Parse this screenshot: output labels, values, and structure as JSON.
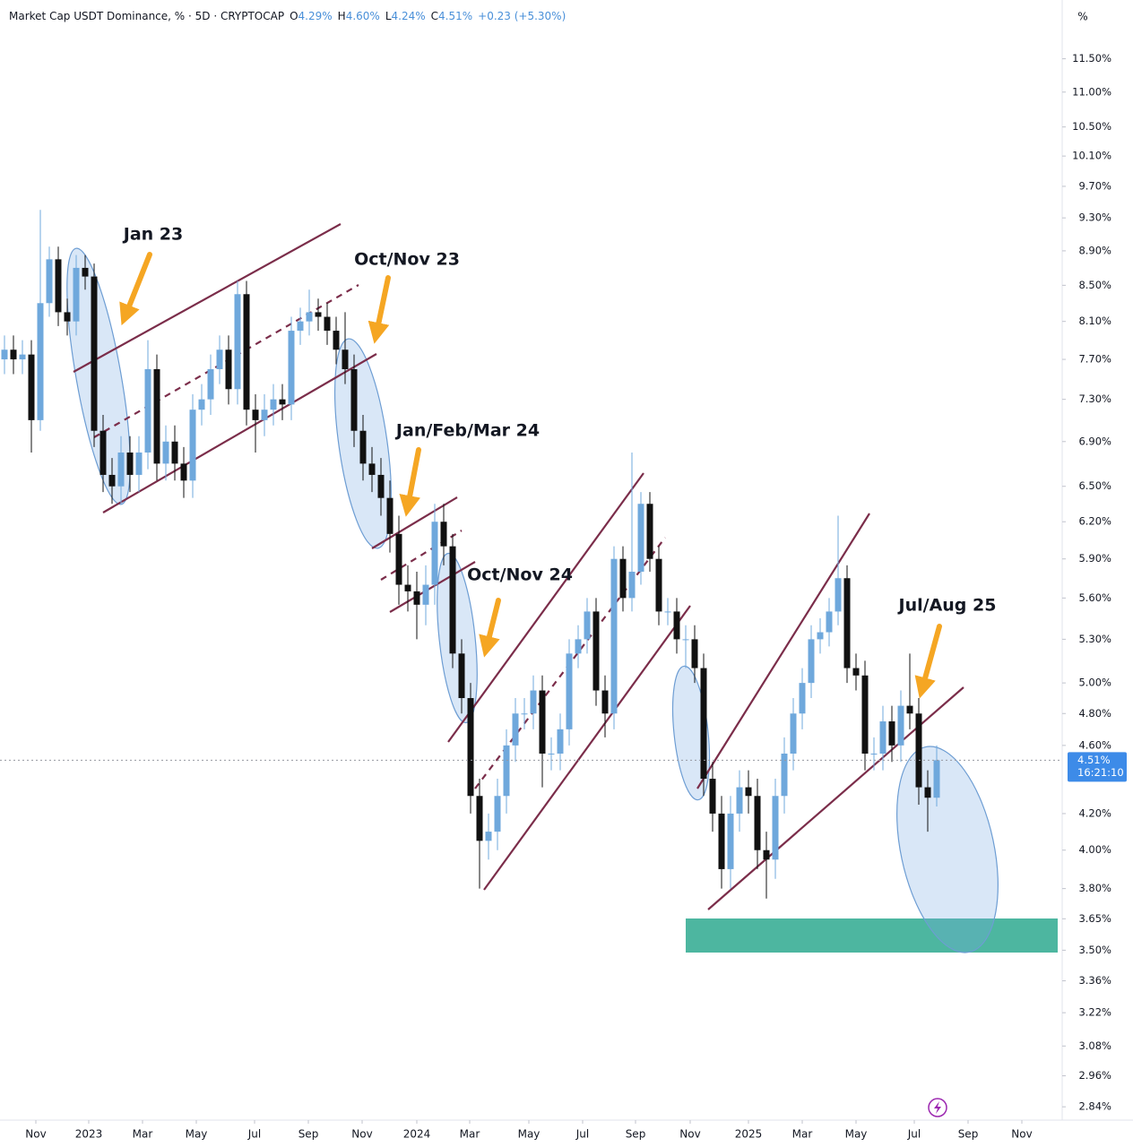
{
  "chart_data": {
    "type": "candlestick",
    "title": "Market Cap USDT Dominance, % · 5D · CRYPTOCAP",
    "ohlc_labels": [
      "O",
      "H",
      "L",
      "C"
    ],
    "ohlc_values": [
      "4.29%",
      "4.60%",
      "4.24%",
      "4.51%"
    ],
    "change": "+0.23 (+5.30%)",
    "unit": "%",
    "price_label": "4.51%",
    "countdown": "16:21:10",
    "up_color": "#6fa8dc",
    "down_color": "#111111",
    "log_scale": true,
    "grid": false,
    "open": [
      7.7,
      7.8,
      7.7,
      7.75,
      7.1,
      8.3,
      8.8,
      8.2,
      8.1,
      8.7,
      8.6,
      7.0,
      6.6,
      6.5,
      6.8,
      6.6,
      6.8,
      7.6,
      6.7,
      6.9,
      6.7,
      6.55,
      7.2,
      7.3,
      7.6,
      7.8,
      7.4,
      8.4,
      7.2,
      7.1,
      7.2,
      7.3,
      7.25,
      8.0,
      8.1,
      8.2,
      8.15,
      8.0,
      7.8,
      7.6,
      7.0,
      6.7,
      6.6,
      6.4,
      6.1,
      5.7,
      5.65,
      5.55,
      5.7,
      6.2,
      6.0,
      5.2,
      4.9,
      4.3,
      4.05,
      4.1,
      4.3,
      4.6,
      4.8,
      4.8,
      4.95,
      4.55,
      4.55,
      4.7,
      5.2,
      5.3,
      5.5,
      4.95,
      4.8,
      5.9,
      5.6,
      5.8,
      6.35,
      5.9,
      5.5,
      5.5,
      5.3,
      5.3,
      5.1,
      4.4,
      4.2,
      3.9,
      4.2,
      4.35,
      4.3,
      4.0,
      3.95,
      4.3,
      4.55,
      4.8,
      5.0,
      5.3,
      5.35,
      5.5,
      5.75,
      5.1,
      5.05,
      4.55,
      4.55,
      4.75,
      4.6,
      4.85,
      4.8,
      4.35,
      4.29
    ],
    "high": [
      7.95,
      7.95,
      7.9,
      7.9,
      9.4,
      8.95,
      8.95,
      8.35,
      8.85,
      8.85,
      8.75,
      7.15,
      6.75,
      6.95,
      6.95,
      6.95,
      7.9,
      7.75,
      7.05,
      7.05,
      6.85,
      7.35,
      7.45,
      7.75,
      7.95,
      7.95,
      8.55,
      8.55,
      7.35,
      7.35,
      7.45,
      7.45,
      8.15,
      8.25,
      8.45,
      8.35,
      8.3,
      8.15,
      8.2,
      7.75,
      7.15,
      6.85,
      6.75,
      6.55,
      6.25,
      5.85,
      5.8,
      5.85,
      6.35,
      6.35,
      6.1,
      5.3,
      5.0,
      4.4,
      4.2,
      4.4,
      4.7,
      4.9,
      4.9,
      5.05,
      5.05,
      4.65,
      4.8,
      5.3,
      5.4,
      5.6,
      5.6,
      5.05,
      6.0,
      6.0,
      6.8,
      6.45,
      6.45,
      6.0,
      5.6,
      5.6,
      5.4,
      5.4,
      5.2,
      4.5,
      4.3,
      4.3,
      4.45,
      4.45,
      4.4,
      4.1,
      4.4,
      4.65,
      4.9,
      5.1,
      5.4,
      5.45,
      5.6,
      6.25,
      5.85,
      5.2,
      5.15,
      4.65,
      4.85,
      4.85,
      4.95,
      5.2,
      4.9,
      4.45,
      4.6
    ],
    "low": [
      7.55,
      7.55,
      7.55,
      6.8,
      7.0,
      8.15,
      8.05,
      7.95,
      7.95,
      8.45,
      6.85,
      6.45,
      6.35,
      6.35,
      6.45,
      6.45,
      6.65,
      6.55,
      6.55,
      6.55,
      6.4,
      6.4,
      7.05,
      7.15,
      7.45,
      7.25,
      7.25,
      7.05,
      6.8,
      6.95,
      7.05,
      7.1,
      7.1,
      7.85,
      7.95,
      8.0,
      7.85,
      7.65,
      7.45,
      6.85,
      6.55,
      6.45,
      6.25,
      5.95,
      5.55,
      5.5,
      5.3,
      5.4,
      5.55,
      5.85,
      5.1,
      4.8,
      4.2,
      3.8,
      3.95,
      4.0,
      4.2,
      4.5,
      4.7,
      4.7,
      4.35,
      4.45,
      4.45,
      4.6,
      5.1,
      5.2,
      4.85,
      4.65,
      4.7,
      5.5,
      5.5,
      5.7,
      5.8,
      5.4,
      5.4,
      5.2,
      5.1,
      5.0,
      4.3,
      4.1,
      3.8,
      3.8,
      4.1,
      4.2,
      3.9,
      3.75,
      3.85,
      4.2,
      4.45,
      4.7,
      4.9,
      5.2,
      5.25,
      5.4,
      5.0,
      4.95,
      4.45,
      4.45,
      4.45,
      4.5,
      4.5,
      4.7,
      4.25,
      4.1,
      4.24
    ],
    "close": [
      7.8,
      7.7,
      7.75,
      7.1,
      8.3,
      8.8,
      8.2,
      8.1,
      8.7,
      8.6,
      7.0,
      6.6,
      6.5,
      6.8,
      6.6,
      6.8,
      7.6,
      6.7,
      6.9,
      6.7,
      6.55,
      7.2,
      7.3,
      7.6,
      7.8,
      7.4,
      8.4,
      7.2,
      7.1,
      7.2,
      7.3,
      7.25,
      8.0,
      8.1,
      8.2,
      8.15,
      8.0,
      7.8,
      7.6,
      7.0,
      6.7,
      6.6,
      6.4,
      6.1,
      5.7,
      5.65,
      5.55,
      5.7,
      6.2,
      6.0,
      5.2,
      4.9,
      4.3,
      4.05,
      4.1,
      4.3,
      4.6,
      4.8,
      4.8,
      4.95,
      4.55,
      4.55,
      4.7,
      5.2,
      5.3,
      5.5,
      4.95,
      4.8,
      5.9,
      5.6,
      5.8,
      6.35,
      5.9,
      5.5,
      5.5,
      5.3,
      5.3,
      5.1,
      4.4,
      4.2,
      3.9,
      4.2,
      4.35,
      4.3,
      4.0,
      3.95,
      4.3,
      4.55,
      4.8,
      5.0,
      5.3,
      5.35,
      5.5,
      5.75,
      5.1,
      5.05,
      4.55,
      4.55,
      4.75,
      4.6,
      4.85,
      4.8,
      4.35,
      4.29,
      4.51
    ],
    "xlim": [
      -0.5,
      118
    ],
    "xticks": [
      {
        "value": 3.5,
        "label": "Nov"
      },
      {
        "value": 9.4,
        "label": "2023"
      },
      {
        "value": 15.4,
        "label": "Mar"
      },
      {
        "value": 21.4,
        "label": "May"
      },
      {
        "value": 27.9,
        "label": "Jul"
      },
      {
        "value": 33.9,
        "label": "Sep"
      },
      {
        "value": 39.9,
        "label": "Nov"
      },
      {
        "value": 46,
        "label": "2024"
      },
      {
        "value": 51.9,
        "label": "Mar"
      },
      {
        "value": 58.5,
        "label": "May"
      },
      {
        "value": 64.5,
        "label": "Jul"
      },
      {
        "value": 70.4,
        "label": "Sep"
      },
      {
        "value": 76.5,
        "label": "Nov"
      },
      {
        "value": 83,
        "label": "2025"
      },
      {
        "value": 89,
        "label": "Mar"
      },
      {
        "value": 95,
        "label": "May"
      },
      {
        "value": 101.5,
        "label": "Jul"
      },
      {
        "value": 107.5,
        "label": "Sep"
      },
      {
        "value": 113.5,
        "label": "Nov"
      }
    ],
    "ylim": [
      2.79,
      12.0
    ],
    "yticks": [
      {
        "value": 11.5,
        "label": "11.50%"
      },
      {
        "value": 11.0,
        "label": "11.00%"
      },
      {
        "value": 10.5,
        "label": "10.50%"
      },
      {
        "value": 10.1,
        "label": "10.10%"
      },
      {
        "value": 9.7,
        "label": "9.70%"
      },
      {
        "value": 9.3,
        "label": "9.30%"
      },
      {
        "value": 8.9,
        "label": "8.90%"
      },
      {
        "value": 8.5,
        "label": "8.50%"
      },
      {
        "value": 8.1,
        "label": "8.10%"
      },
      {
        "value": 7.7,
        "label": "7.70%"
      },
      {
        "value": 7.3,
        "label": "7.30%"
      },
      {
        "value": 6.9,
        "label": "6.90%"
      },
      {
        "value": 6.5,
        "label": "6.50%"
      },
      {
        "value": 6.2,
        "label": "6.20%"
      },
      {
        "value": 5.9,
        "label": "5.90%"
      },
      {
        "value": 5.6,
        "label": "5.60%"
      },
      {
        "value": 5.3,
        "label": "5.30%"
      },
      {
        "value": 5.0,
        "label": "5.00%"
      },
      {
        "value": 4.8,
        "label": "4.80%"
      },
      {
        "value": 4.6,
        "label": "4.60%"
      },
      {
        "value": 4.2,
        "label": "4.20%"
      },
      {
        "value": 4.0,
        "label": "4.00%"
      },
      {
        "value": 3.8,
        "label": "3.80%"
      },
      {
        "value": 3.65,
        "label": "3.65%"
      },
      {
        "value": 3.5,
        "label": "3.50%"
      },
      {
        "value": 3.36,
        "label": "3.36%"
      },
      {
        "value": 3.22,
        "label": "3.22%"
      },
      {
        "value": 3.08,
        "label": "3.08%"
      },
      {
        "value": 2.96,
        "label": "2.96%"
      },
      {
        "value": 2.84,
        "label": "2.84%"
      }
    ],
    "annotations": [
      "Jan 23",
      "Oct/Nov 23",
      "Jan/Feb/Mar 24",
      "Oct/Nov 24",
      "Jul/Aug 25"
    ]
  }
}
